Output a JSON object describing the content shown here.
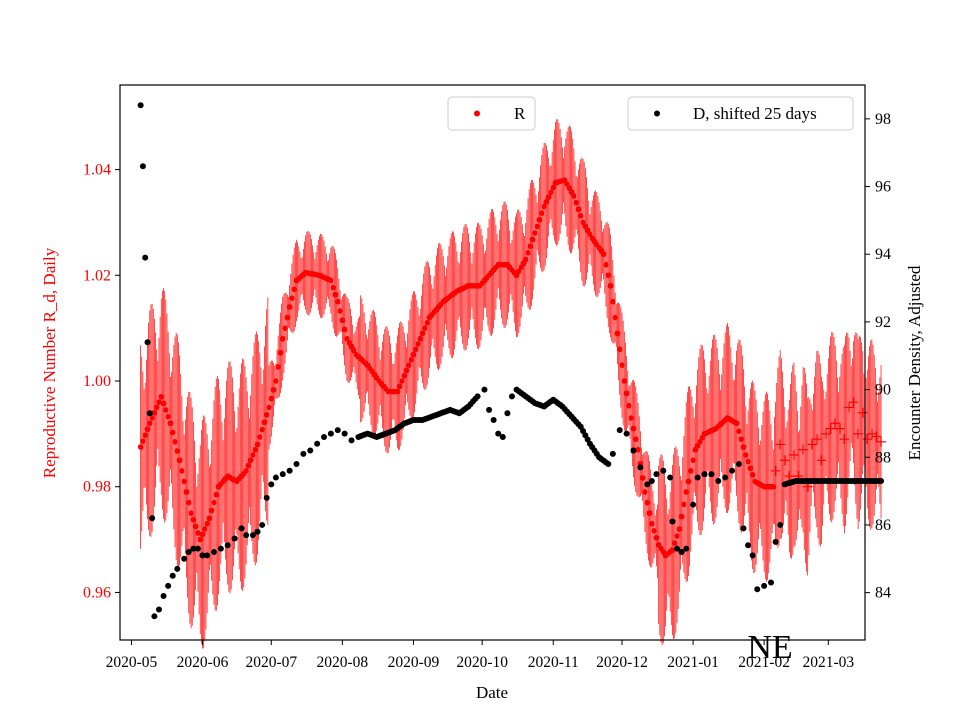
{
  "colors": {
    "r_series": "#ff0000",
    "d_series": "#000000",
    "axis": "#000000",
    "background": "#ffffff"
  },
  "chart_data": {
    "type": "scatter",
    "region_label": "NE",
    "xlabel": "Date",
    "x_range_days": [
      -5,
      320
    ],
    "x_ticks": [
      {
        "label": "2020-05",
        "day": 0
      },
      {
        "label": "2020-06",
        "day": 31
      },
      {
        "label": "2020-07",
        "day": 61
      },
      {
        "label": "2020-08",
        "day": 92
      },
      {
        "label": "2020-09",
        "day": 123
      },
      {
        "label": "2020-10",
        "day": 153
      },
      {
        "label": "2020-11",
        "day": 184
      },
      {
        "label": "2020-12",
        "day": 214
      },
      {
        "label": "2021-01",
        "day": 245
      },
      {
        "label": "2021-02",
        "day": 276
      },
      {
        "label": "2021-03",
        "day": 304
      }
    ],
    "left_axis": {
      "label": "Reproductive Number R_d, Daily",
      "ylim": [
        0.951,
        1.056
      ],
      "ticks": [
        "0.96",
        "0.98",
        "1.00",
        "1.02",
        "1.04"
      ],
      "tick_values": [
        0.96,
        0.98,
        1.0,
        1.02,
        1.04
      ]
    },
    "right_axis": {
      "label": "Encounter Density, Adjusted",
      "ylim": [
        82.6,
        99.0
      ],
      "ticks": [
        "84",
        "86",
        "88",
        "90",
        "92",
        "94",
        "96",
        "98"
      ],
      "tick_values": [
        84,
        86,
        88,
        90,
        92,
        94,
        96,
        98
      ]
    },
    "legend": [
      {
        "label": "R",
        "position": "top-center"
      },
      {
        "label": "D, shifted 25 days",
        "position": "top-right"
      }
    ],
    "series": [
      {
        "name": "R",
        "axis": "left",
        "marker": "dot",
        "error_bars": true,
        "keypoints": [
          [
            4,
            0.9875
          ],
          [
            8,
            0.992
          ],
          [
            13,
            0.997
          ],
          [
            17,
            0.992
          ],
          [
            21,
            0.985
          ],
          [
            26,
            0.975
          ],
          [
            30,
            0.97
          ],
          [
            34,
            0.974
          ],
          [
            38,
            0.98
          ],
          [
            42,
            0.982
          ],
          [
            46,
            0.981
          ],
          [
            50,
            0.983
          ],
          [
            55,
            0.988
          ],
          [
            60,
            0.995
          ],
          [
            63,
            1.0
          ],
          [
            66,
            1.008
          ],
          [
            69,
            1.014
          ],
          [
            72,
            1.019
          ],
          [
            76,
            1.0205
          ],
          [
            82,
            1.02
          ],
          [
            87,
            1.019
          ],
          [
            90,
            1.015
          ],
          [
            94,
            1.008
          ],
          [
            98,
            1.005
          ],
          [
            103,
            1.003
          ],
          [
            108,
            1.0
          ],
          [
            112,
            0.998
          ],
          [
            116,
            0.998
          ],
          [
            119,
            1.001
          ],
          [
            124,
            1.006
          ],
          [
            130,
            1.012
          ],
          [
            136,
            1.015
          ],
          [
            142,
            1.017
          ],
          [
            147,
            1.018
          ],
          [
            152,
            1.018
          ],
          [
            156,
            1.02
          ],
          [
            160,
            1.022
          ],
          [
            164,
            1.022
          ],
          [
            168,
            1.02
          ],
          [
            172,
            1.023
          ],
          [
            176,
            1.028
          ],
          [
            180,
            1.033
          ],
          [
            185,
            1.0375
          ],
          [
            189,
            1.038
          ],
          [
            193,
            1.035
          ],
          [
            197,
            1.03
          ],
          [
            201,
            1.027
          ],
          [
            206,
            1.024
          ],
          [
            209,
            1.018
          ],
          [
            212,
            1.009
          ],
          [
            215,
            1.0
          ],
          [
            218,
            0.993
          ],
          [
            221,
            0.987
          ],
          [
            224,
            0.979
          ],
          [
            227,
            0.973
          ],
          [
            230,
            0.969
          ],
          [
            233,
            0.967
          ],
          [
            236,
            0.968
          ],
          [
            239,
            0.972
          ],
          [
            242,
            0.979
          ],
          [
            246,
            0.987
          ],
          [
            250,
            0.99
          ],
          [
            255,
            0.991
          ],
          [
            260,
            0.993
          ],
          [
            264,
            0.992
          ],
          [
            268,
            0.986
          ],
          [
            272,
            0.981
          ],
          [
            276,
            0.98
          ],
          [
            280,
            0.98
          ]
        ],
        "cross_points": [
          [
            281,
            0.983
          ],
          [
            283,
            0.988
          ],
          [
            285,
            0.985
          ],
          [
            287,
            0.982
          ],
          [
            289,
            0.986
          ],
          [
            291,
            0.982
          ],
          [
            293,
            0.987
          ],
          [
            295,
            0.98
          ],
          [
            297,
            0.988
          ],
          [
            299,
            0.989
          ],
          [
            301,
            0.985
          ],
          [
            303,
            0.99
          ],
          [
            305,
            0.991
          ],
          [
            307,
            0.992
          ],
          [
            309,
            0.991
          ],
          [
            311,
            0.989
          ],
          [
            313,
            0.995
          ],
          [
            315,
            0.996
          ],
          [
            317,
            0.99
          ],
          [
            319,
            0.994
          ],
          [
            321,
            0.989
          ],
          [
            323,
            0.99
          ],
          [
            325,
            0.9895
          ],
          [
            327,
            0.9885
          ]
        ]
      },
      {
        "name": "D, shifted 25 days",
        "axis": "right",
        "marker": "dot",
        "keypoints": [
          [
            4,
            98.4
          ],
          [
            5,
            96.6
          ],
          [
            6,
            93.9
          ],
          [
            7,
            91.4
          ],
          [
            8,
            89.3
          ],
          [
            9,
            86.2
          ],
          [
            10,
            83.3
          ],
          [
            12,
            83.5
          ],
          [
            14,
            83.9
          ],
          [
            16,
            84.2
          ],
          [
            18,
            84.5
          ],
          [
            20,
            84.7
          ],
          [
            23,
            85.0
          ],
          [
            25,
            85.2
          ],
          [
            27,
            85.3
          ],
          [
            29,
            85.3
          ],
          [
            31,
            85.1
          ],
          [
            33,
            85.1
          ],
          [
            36,
            85.2
          ],
          [
            39,
            85.3
          ],
          [
            42,
            85.4
          ],
          [
            45,
            85.6
          ],
          [
            48,
            85.9
          ],
          [
            50,
            85.7
          ],
          [
            53,
            85.7
          ],
          [
            55,
            85.8
          ],
          [
            57,
            86.0
          ],
          [
            59,
            86.8
          ],
          [
            61,
            87.2
          ],
          [
            63,
            87.4
          ],
          [
            66,
            87.5
          ],
          [
            69,
            87.6
          ],
          [
            72,
            87.8
          ],
          [
            75,
            88.1
          ],
          [
            78,
            88.2
          ],
          [
            81,
            88.4
          ],
          [
            84,
            88.6
          ],
          [
            87,
            88.7
          ],
          [
            90,
            88.8
          ],
          [
            93,
            88.7
          ],
          [
            96,
            88.5
          ],
          [
            99,
            88.6
          ],
          [
            103,
            88.7
          ],
          [
            107,
            88.6
          ],
          [
            111,
            88.7
          ],
          [
            115,
            88.8
          ],
          [
            119,
            89.0
          ],
          [
            123,
            89.1
          ],
          [
            127,
            89.1
          ],
          [
            131,
            89.2
          ],
          [
            135,
            89.3
          ],
          [
            139,
            89.4
          ],
          [
            143,
            89.3
          ],
          [
            147,
            89.5
          ],
          [
            151,
            89.8
          ],
          [
            154,
            90.0
          ],
          [
            156,
            89.4
          ],
          [
            158,
            89.1
          ],
          [
            160,
            88.7
          ],
          [
            162,
            88.6
          ],
          [
            164,
            89.3
          ],
          [
            166,
            89.8
          ],
          [
            168,
            90.0
          ],
          [
            172,
            89.8
          ],
          [
            176,
            89.6
          ],
          [
            180,
            89.5
          ],
          [
            184,
            89.7
          ],
          [
            188,
            89.5
          ],
          [
            192,
            89.2
          ],
          [
            196,
            88.9
          ],
          [
            200,
            88.4
          ],
          [
            204,
            88.0
          ],
          [
            208,
            87.8
          ],
          [
            210,
            88.1
          ],
          [
            213,
            88.8
          ],
          [
            216,
            88.7
          ],
          [
            219,
            88.2
          ],
          [
            222,
            87.7
          ],
          [
            225,
            87.2
          ],
          [
            227,
            87.3
          ],
          [
            229,
            87.5
          ],
          [
            232,
            87.6
          ],
          [
            235,
            87.4
          ],
          [
            236,
            86.1
          ],
          [
            238,
            85.3
          ],
          [
            240,
            85.2
          ],
          [
            242,
            85.3
          ],
          [
            245,
            86.6
          ],
          [
            247,
            87.4
          ],
          [
            250,
            87.5
          ],
          [
            253,
            87.5
          ],
          [
            256,
            87.3
          ],
          [
            259,
            87.4
          ],
          [
            262,
            87.6
          ],
          [
            265,
            87.8
          ],
          [
            267,
            85.9
          ],
          [
            269,
            85.4
          ],
          [
            271,
            85.1
          ],
          [
            273,
            84.1
          ],
          [
            276,
            84.2
          ],
          [
            279,
            84.3
          ],
          [
            281,
            85.5
          ],
          [
            283,
            86.0
          ],
          [
            285,
            87.2
          ],
          [
            290,
            87.3
          ],
          [
            300,
            87.3
          ],
          [
            310,
            87.3
          ],
          [
            320,
            87.3
          ],
          [
            327,
            87.3
          ]
        ]
      }
    ]
  }
}
